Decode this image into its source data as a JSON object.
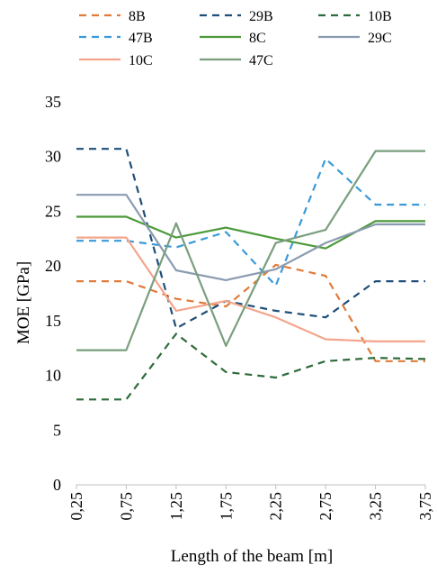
{
  "chart_data": {
    "type": "line",
    "title": "",
    "xlabel": "Length of the beam [m]",
    "ylabel": "MOE [GPa]",
    "categories": [
      "0,25",
      "0,75",
      "1,25",
      "1,75",
      "2,25",
      "2,75",
      "3,25",
      "3,75"
    ],
    "ylim": [
      0,
      35
    ],
    "yticks": [
      "0",
      "5",
      "10",
      "15",
      "20",
      "25",
      "30",
      "35"
    ],
    "grid": false,
    "legend_position": "top",
    "series": [
      {
        "name": "8B",
        "color": "#E07B39",
        "dash": true,
        "values": [
          18.6,
          18.6,
          17.0,
          16.3,
          20.1,
          19.1,
          11.3,
          11.3
        ]
      },
      {
        "name": "29B",
        "color": "#1F4E79",
        "dash": true,
        "values": [
          30.7,
          30.7,
          14.3,
          16.8,
          15.9,
          15.3,
          18.6,
          18.6
        ]
      },
      {
        "name": "10B",
        "color": "#2E6B3A",
        "dash": true,
        "values": [
          7.8,
          7.8,
          13.8,
          10.3,
          9.8,
          11.3,
          11.6,
          11.5
        ]
      },
      {
        "name": "47B",
        "color": "#3A9AD9",
        "dash": true,
        "values": [
          22.3,
          22.3,
          21.7,
          23.1,
          18.2,
          29.8,
          25.6,
          25.6
        ]
      },
      {
        "name": "8C",
        "color": "#4C9A3A",
        "dash": false,
        "values": [
          24.5,
          24.5,
          22.6,
          23.5,
          22.5,
          21.6,
          24.1,
          24.1
        ]
      },
      {
        "name": "29C",
        "color": "#8A9BB0",
        "dash": false,
        "values": [
          26.5,
          26.5,
          19.6,
          18.7,
          19.7,
          22.1,
          23.8,
          23.8
        ]
      },
      {
        "name": "10C",
        "color": "#F4A58C",
        "dash": false,
        "values": [
          22.6,
          22.6,
          15.9,
          16.8,
          15.3,
          13.3,
          13.1,
          13.1
        ]
      },
      {
        "name": "47C",
        "color": "#7A9E7E",
        "dash": false,
        "values": [
          12.3,
          12.3,
          23.9,
          12.7,
          22.1,
          23.3,
          30.5,
          30.5
        ]
      }
    ]
  }
}
